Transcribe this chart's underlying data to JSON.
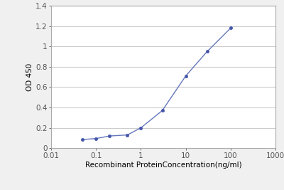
{
  "x": [
    0.05,
    0.1,
    0.2,
    0.5,
    1.0,
    3.0,
    10.0,
    30.0,
    100.0
  ],
  "y": [
    0.085,
    0.095,
    0.12,
    0.13,
    0.2,
    0.37,
    0.71,
    0.95,
    1.18
  ],
  "line_color": "#6677bb",
  "marker_color": "#4455aa",
  "marker_style": "o",
  "marker_size": 3,
  "xlabel": "Recombinant ProteinConcentration(ng/ml)",
  "ylabel": "OD 450",
  "xlim": [
    0.01,
    1000
  ],
  "ylim": [
    0,
    1.4
  ],
  "yticks": [
    0,
    0.2,
    0.4,
    0.6,
    0.8,
    1.0,
    1.2,
    1.4
  ],
  "ytick_labels": [
    "0",
    "0.2",
    "0.4",
    "0.6",
    "0.8",
    "1",
    "1.2",
    "1.4"
  ],
  "xticks": [
    0.01,
    0.1,
    1,
    10,
    100,
    1000
  ],
  "xtick_labels": [
    "0.01",
    "0.1",
    "1",
    "10",
    "100",
    "1000"
  ],
  "plot_bg_color": "#ffffff",
  "fig_bg_color": "#f0f0f0",
  "grid_color": "#cccccc",
  "xlabel_fontsize": 7.5,
  "ylabel_fontsize": 7.5,
  "tick_fontsize": 7.5,
  "spine_color": "#aaaaaa"
}
